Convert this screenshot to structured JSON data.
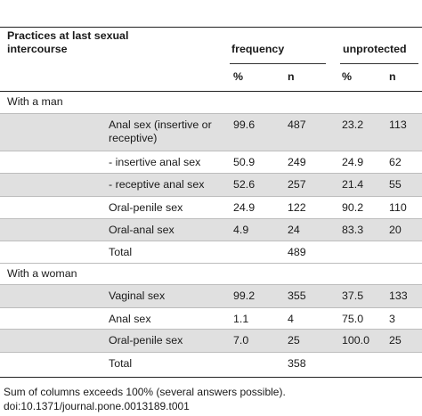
{
  "header": {
    "title": "Practices at last sexual intercourse",
    "group_frequency": "frequency",
    "group_unprotected": "unprotected",
    "col_pct": "%",
    "col_n": "n"
  },
  "rows": [
    {
      "type": "section",
      "label": "With a man"
    },
    {
      "type": "data",
      "label": "Anal sex (insertive or receptive)",
      "freq_pct": "99.6",
      "freq_n": "487",
      "unp_pct": "23.2",
      "unp_n": "113"
    },
    {
      "type": "data",
      "label": "- insertive anal sex",
      "freq_pct": "50.9",
      "freq_n": "249",
      "unp_pct": "24.9",
      "unp_n": "62"
    },
    {
      "type": "data",
      "label": "- receptive anal sex",
      "freq_pct": "52.6",
      "freq_n": "257",
      "unp_pct": "21.4",
      "unp_n": "55"
    },
    {
      "type": "data",
      "label": "Oral-penile sex",
      "freq_pct": "24.9",
      "freq_n": "122",
      "unp_pct": "90.2",
      "unp_n": "110"
    },
    {
      "type": "data",
      "label": "Oral-anal sex",
      "freq_pct": "4.9",
      "freq_n": "24",
      "unp_pct": "83.3",
      "unp_n": "20"
    },
    {
      "type": "data",
      "label": "Total",
      "freq_pct": "",
      "freq_n": "489",
      "unp_pct": "",
      "unp_n": ""
    },
    {
      "type": "section",
      "label": "With a woman"
    },
    {
      "type": "data",
      "label": "Vaginal sex",
      "freq_pct": "99.2",
      "freq_n": "355",
      "unp_pct": "37.5",
      "unp_n": "133"
    },
    {
      "type": "data",
      "label": "Anal sex",
      "freq_pct": "1.1",
      "freq_n": "4",
      "unp_pct": "75.0",
      "unp_n": "3"
    },
    {
      "type": "data",
      "label": "Oral-penile sex",
      "freq_pct": "7.0",
      "freq_n": "25",
      "unp_pct": "100.0",
      "unp_n": "25"
    },
    {
      "type": "data",
      "label": "Total",
      "freq_pct": "",
      "freq_n": "358",
      "unp_pct": "",
      "unp_n": ""
    }
  ],
  "footnotes": {
    "note": "Sum of columns exceeds 100% (several answers possible).",
    "doi": "doi:10.1371/journal.pone.0013189.t001"
  }
}
